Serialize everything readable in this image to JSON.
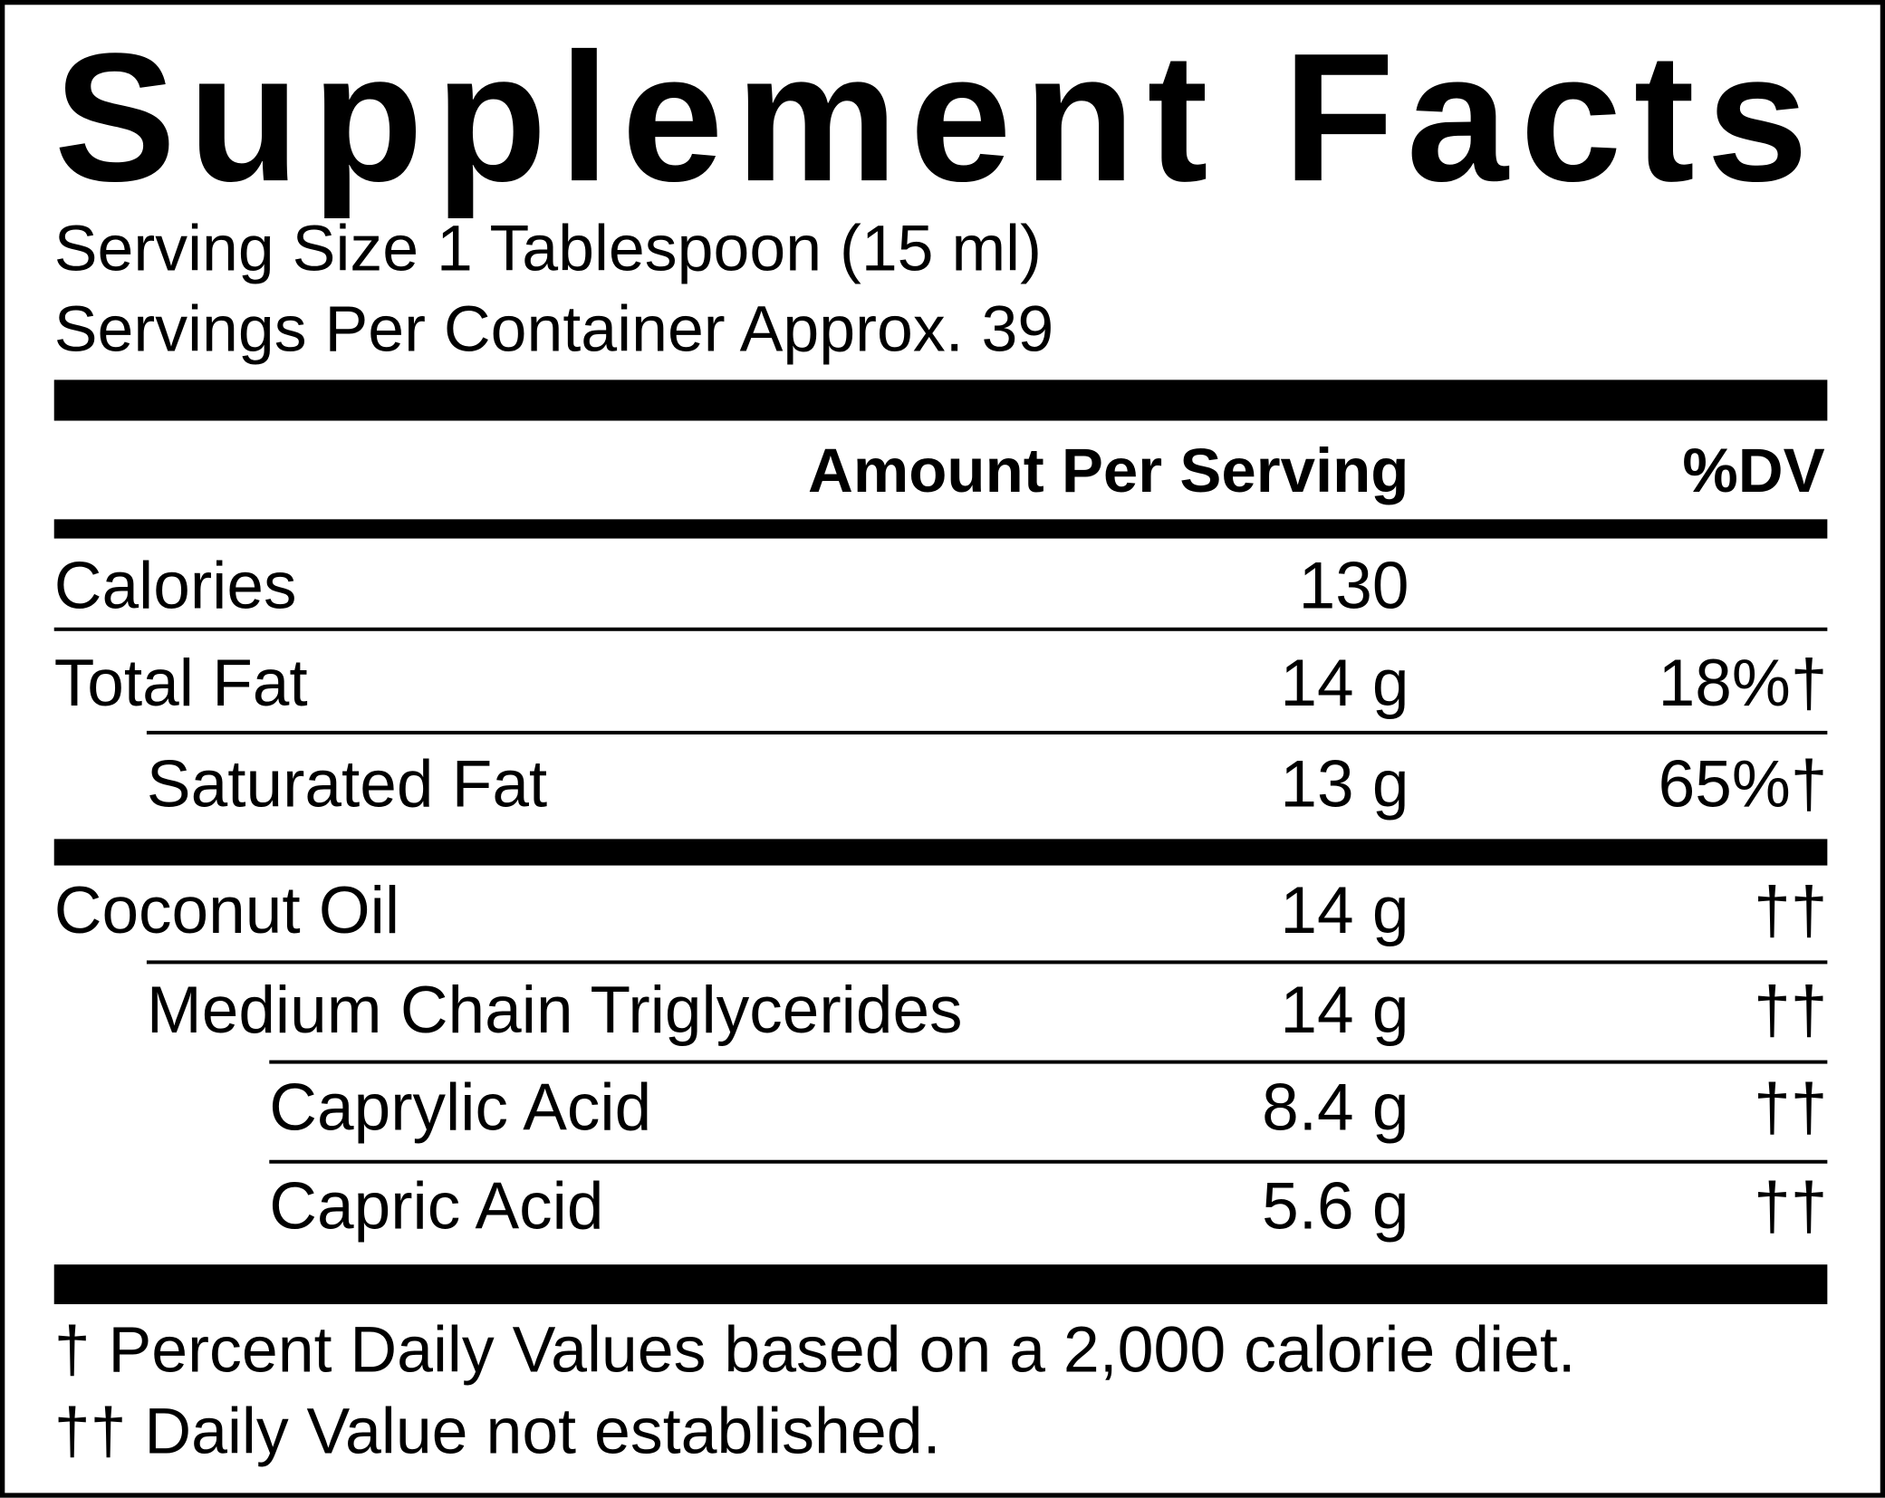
{
  "header": {
    "title": "Supplement Facts",
    "serving_size": "Serving Size 1 Tablespoon (15 ml)",
    "servings_per_container": "Servings Per Container Approx. 39"
  },
  "table": {
    "columns": [
      "Amount Per Serving",
      "%DV"
    ],
    "rows": [
      {
        "name": "Calories",
        "amount": "130"
      },
      {
        "name": "Total Fat",
        "amount": "14 g",
        "dv": "18%†"
      },
      {
        "name": "Saturated Fat",
        "amount": "13 g",
        "dv": "65%†"
      },
      {
        "name": "Coconut Oil",
        "amount": "14 g",
        "dv": "††"
      },
      {
        "name": "Medium Chain Triglycerides",
        "amount": "14 g",
        "dv": "††"
      },
      {
        "name": "Caprylic Acid",
        "amount": "8.4 g",
        "dv": "††"
      },
      {
        "name": "Capric Acid",
        "amount": "5.6 g",
        "dv": "††"
      }
    ]
  },
  "footnotes": [
    "† Percent Daily Values based on a 2,000 calorie diet.",
    "†† Daily Value not established."
  ]
}
